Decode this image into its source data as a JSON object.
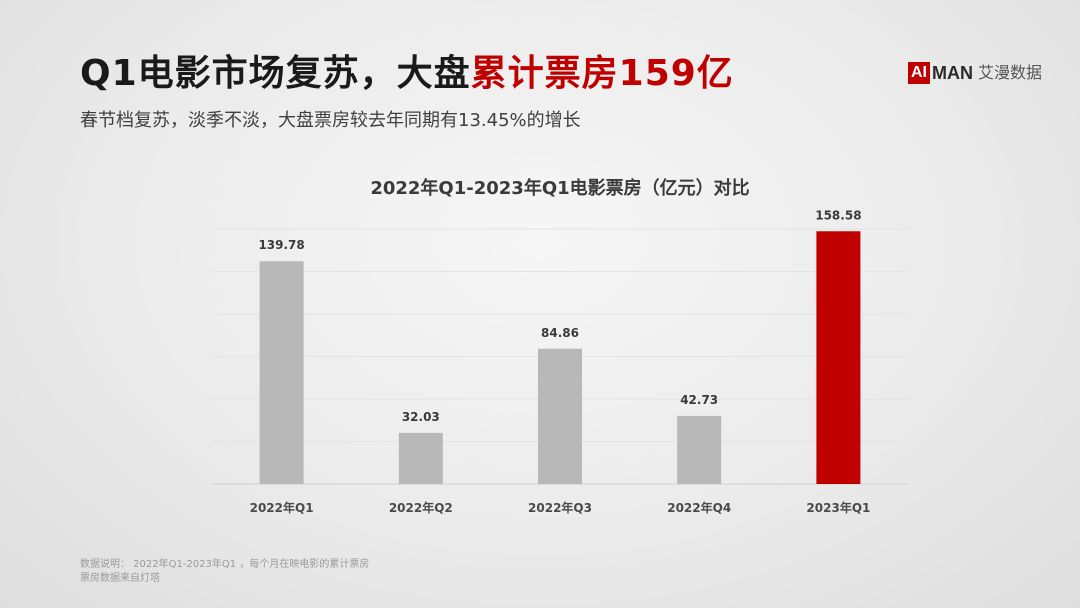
{
  "header": {
    "title_main": "Q1电影市场复苏，大盘",
    "title_accent": "累计票房159亿",
    "subtitle": "春节档复苏，淡季不淡，大盘票房较去年同期有13.45%的增长"
  },
  "brand": {
    "ai": "AI",
    "man": "MAN",
    "cn": "艾漫数据"
  },
  "footnote": {
    "line1": "数据说明：  2022年Q1-2023年Q1 ，每个月在映电影的累计票房",
    "line2": "票房数据来自灯塔"
  },
  "colors": {
    "bar_default": "#b8b8b8",
    "bar_highlight": "#c00000",
    "accent": "#c00000"
  },
  "chart_data": {
    "type": "bar",
    "title": "2022年Q1-2023年Q1电影票房（亿元）对比",
    "categories": [
      "2022年Q1",
      "2022年Q2",
      "2022年Q3",
      "2022年Q4",
      "2023年Q1"
    ],
    "values": [
      139.78,
      32.03,
      84.86,
      42.73,
      158.58
    ],
    "value_labels": [
      "139.78",
      "32.03",
      "84.86",
      "42.73",
      "158.58"
    ],
    "highlight_index": 4,
    "ylim": [
      0,
      160
    ],
    "xlabel": "",
    "ylabel": "",
    "grid": true,
    "legend": "none"
  }
}
